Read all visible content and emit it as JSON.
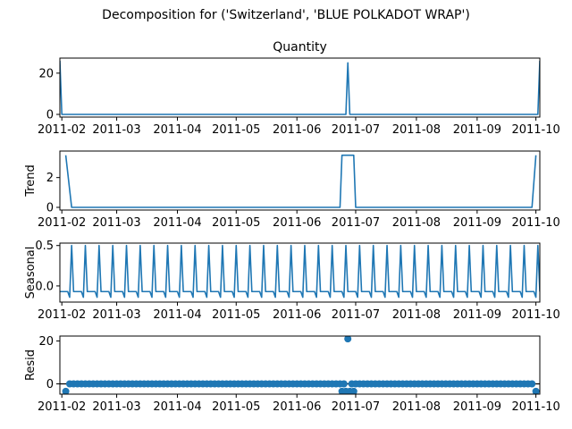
{
  "chart_data": {
    "type": "line",
    "suptitle": "Decomposition for ('Switzerland', 'BLUE POLKADOT WRAP')",
    "color": "#1f77b4",
    "x_start": "2011-01-31",
    "x_end": "2011-10-03",
    "x_tick_labels": [
      "2011-02",
      "2011-03",
      "2011-04",
      "2011-05",
      "2011-06",
      "2011-07",
      "2011-08",
      "2011-09",
      "2011-10"
    ],
    "x_tick_dates": [
      "2011-02-01",
      "2011-03-01",
      "2011-04-01",
      "2011-05-01",
      "2011-06-01",
      "2011-07-01",
      "2011-08-01",
      "2011-09-01",
      "2011-10-01"
    ],
    "panels": [
      {
        "name": "quantity",
        "title": "Quantity",
        "ylabel": "",
        "style": "line",
        "ylim": [
          -1.3,
          27.3
        ],
        "y_ticks": [
          0,
          20
        ],
        "y_tick_labels": [
          "0",
          "20"
        ],
        "points": [
          [
            "2011-01-31",
            26
          ],
          [
            "2011-02-01",
            0
          ],
          [
            "2011-06-26",
            0
          ],
          [
            "2011-06-27",
            25
          ],
          [
            "2011-06-28",
            0
          ],
          [
            "2011-10-02",
            0
          ],
          [
            "2011-10-03",
            26
          ]
        ]
      },
      {
        "name": "trend",
        "title": "",
        "ylabel": "Trend",
        "style": "line",
        "ylim": [
          -0.18,
          3.78
        ],
        "y_ticks": [
          0,
          2
        ],
        "y_tick_labels": [
          "0",
          "2"
        ],
        "points": [
          [
            "2011-02-03",
            3.5
          ],
          [
            "2011-02-06",
            0
          ],
          [
            "2011-06-23",
            0
          ],
          [
            "2011-06-24",
            3.5
          ],
          [
            "2011-06-30",
            3.5
          ],
          [
            "2011-07-01",
            0
          ],
          [
            "2011-09-29",
            0
          ],
          [
            "2011-10-01",
            3.5
          ]
        ]
      },
      {
        "name": "seasonal",
        "title": "",
        "ylabel": "Seasonal",
        "style": "seasonal",
        "ylim": [
          -0.2,
          0.53
        ],
        "y_ticks": [
          0,
          0.5
        ],
        "y_tick_labels": [
          "0.0",
          "0.5"
        ],
        "season_start": "2011-01-31",
        "season_end": "2011-10-03",
        "period_days": 7,
        "season_pattern": [
          -0.07,
          -0.07,
          -0.07,
          -0.07,
          -0.07,
          -0.14,
          0.5
        ]
      },
      {
        "name": "resid",
        "title": "",
        "ylabel": "Resid",
        "style": "scatter",
        "ylim": [
          -4.8,
          22.3
        ],
        "y_ticks": [
          0,
          20
        ],
        "y_tick_labels": [
          "0",
          "20"
        ],
        "zero_line": true,
        "resid_start": "2011-02-03",
        "resid_end": "2011-10-01",
        "resid_step_days": 2,
        "resid_default": 0,
        "resid_outliers": [
          [
            "2011-02-03",
            -3.5
          ],
          [
            "2011-06-24",
            -3.5
          ],
          [
            "2011-06-26",
            -3.5
          ],
          [
            "2011-06-27",
            21
          ],
          [
            "2011-06-28",
            -3.5
          ],
          [
            "2011-06-30",
            -3.5
          ],
          [
            "2011-10-01",
            -3.5
          ]
        ]
      }
    ]
  }
}
